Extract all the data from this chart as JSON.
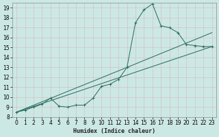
{
  "xlabel": "Humidex (Indice chaleur)",
  "bg_color": "#cce8e5",
  "grid_color": "#b8d4d0",
  "line_color": "#2d6e63",
  "series_main_x": [
    0,
    1,
    2,
    3,
    4,
    5,
    6,
    7,
    8,
    9,
    10,
    11,
    12,
    13,
    14,
    15,
    16,
    17,
    18,
    19,
    20,
    21,
    22,
    23
  ],
  "series_main_y": [
    8.5,
    8.7,
    9.0,
    9.3,
    9.9,
    9.1,
    9.0,
    9.2,
    9.2,
    9.9,
    11.1,
    11.3,
    11.8,
    13.0,
    17.5,
    18.8,
    19.4,
    17.2,
    17.0,
    16.5,
    15.3,
    15.2,
    15.1,
    15.1
  ],
  "line1_x": [
    0,
    23
  ],
  "line1_y": [
    8.5,
    15.1
  ],
  "line2_x": [
    0,
    13,
    23
  ],
  "line2_y": [
    8.5,
    13.0,
    16.5
  ],
  "xlim": [
    -0.5,
    23.5
  ],
  "ylim": [
    8.0,
    19.5
  ],
  "yticks": [
    8,
    9,
    10,
    11,
    12,
    13,
    14,
    15,
    16,
    17,
    18,
    19
  ],
  "xticks": [
    0,
    1,
    2,
    3,
    4,
    5,
    6,
    7,
    8,
    9,
    10,
    11,
    12,
    13,
    14,
    15,
    16,
    17,
    18,
    19,
    20,
    21,
    22,
    23
  ],
  "tick_fontsize": 5.5,
  "xlabel_fontsize": 6.0
}
